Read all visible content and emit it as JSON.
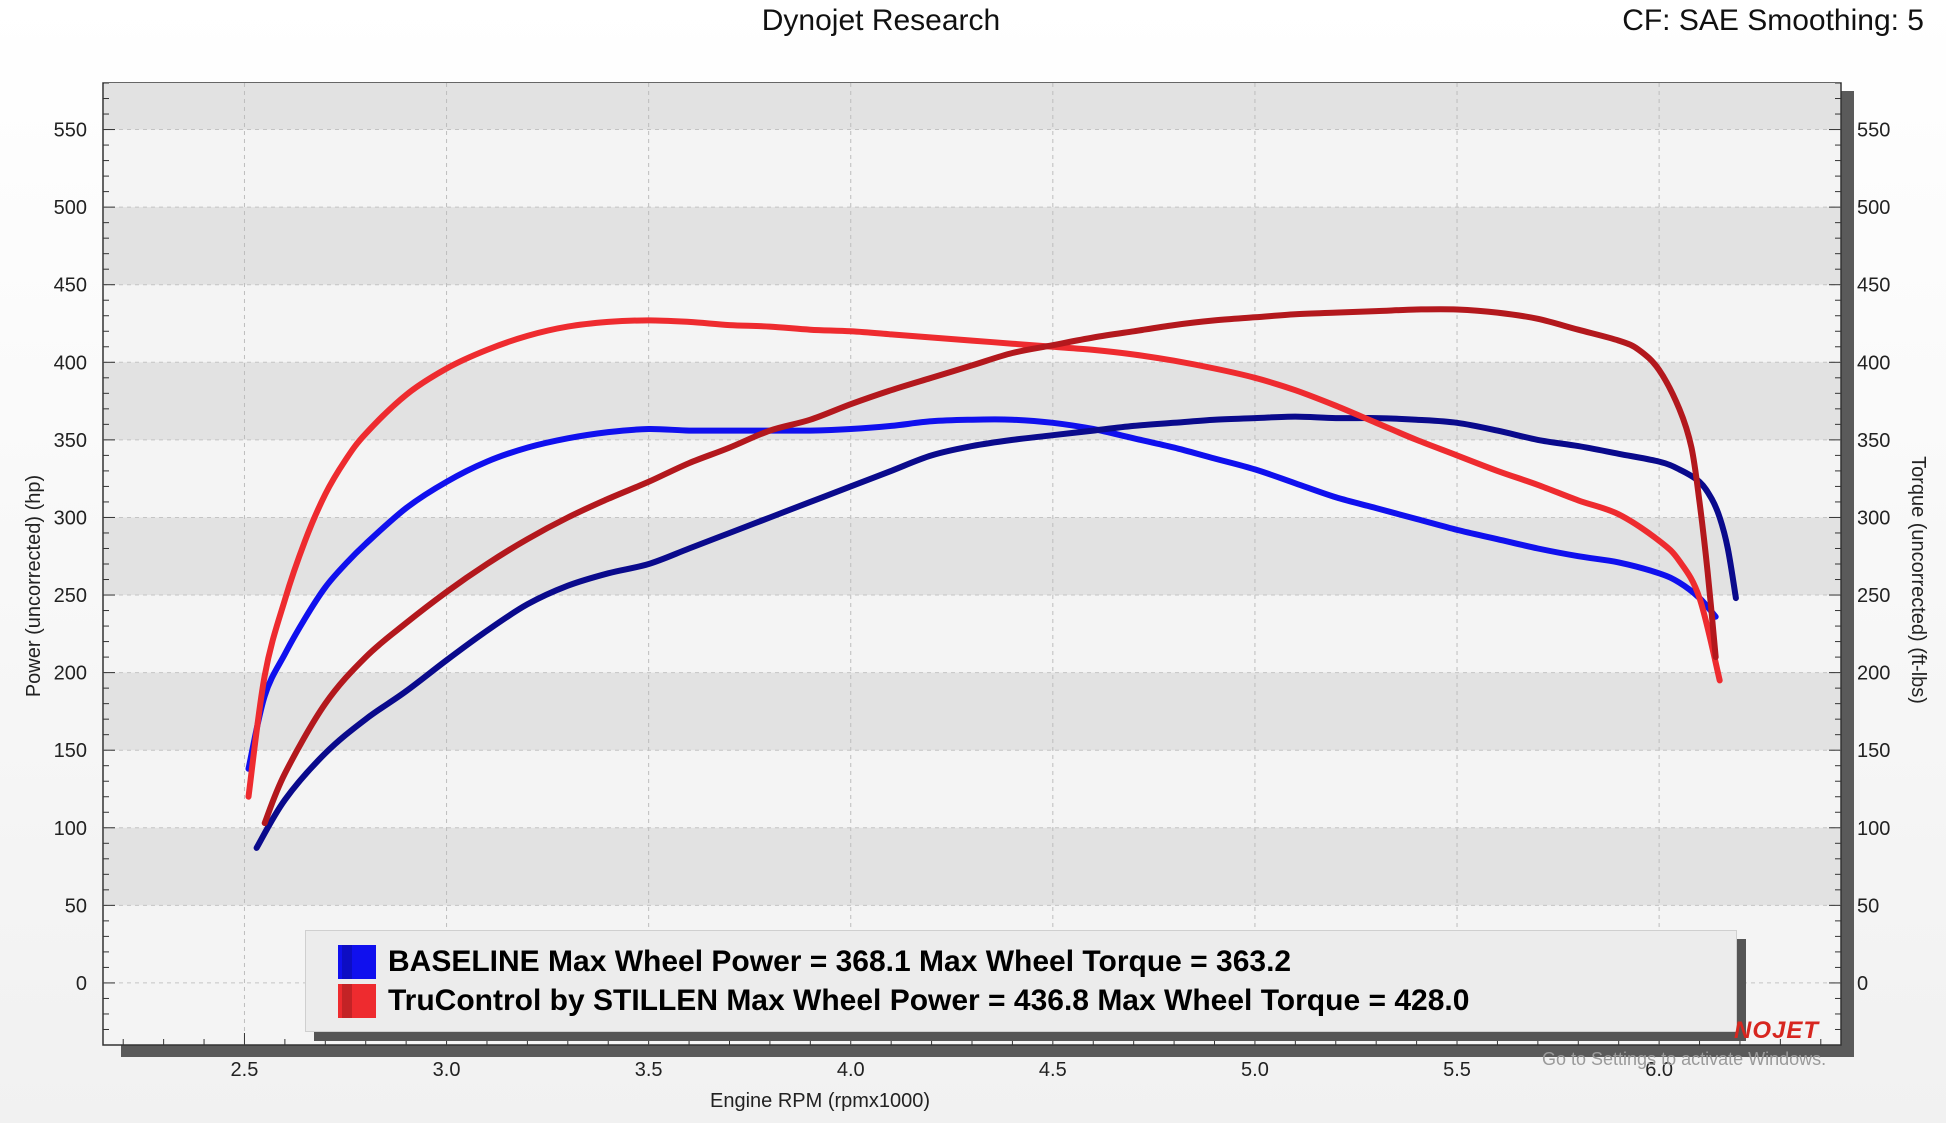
{
  "header": {
    "title": "Dynojet Research",
    "cf": "CF: SAE Smoothing: 5"
  },
  "legend": {
    "items": [
      {
        "label": "BASELINE Max Wheel Power = 368.1 Max Wheel Torque = 363.2",
        "color": "#1010ee"
      },
      {
        "label": "TruControl by STILLEN Max Wheel Power = 436.8 Max Wheel Torque = 428.0",
        "color": "#ee2b2f"
      }
    ]
  },
  "logo_text": "NOJET",
  "watermark": "Go to Settings to activate Windows.",
  "chart_data": {
    "type": "line",
    "xlabel": "Engine RPM (rpmx1000)",
    "ylabel": "Power (uncorrected) (hp)",
    "y2label": "Torque (uncorrected) (ft-lbs)",
    "xlim": [
      2.15,
      6.45
    ],
    "ylim": [
      -40,
      580
    ],
    "xticks": [
      "2.5",
      "3.0",
      "3.5",
      "4.0",
      "4.5",
      "5.0",
      "5.5",
      "6.0"
    ],
    "yticks": [
      "0",
      "50",
      "100",
      "150",
      "200",
      "250",
      "300",
      "350",
      "400",
      "450",
      "500",
      "550"
    ],
    "y2ticks": [
      "0",
      "50",
      "100",
      "150",
      "200",
      "250",
      "300",
      "350",
      "400",
      "450",
      "500",
      "550"
    ],
    "grid": true,
    "legend_position": "bottom",
    "series": [
      {
        "name": "BASELINE Power",
        "color": "#1010ee",
        "x": [
          2.51,
          2.55,
          2.6,
          2.65,
          2.7,
          2.75,
          2.8,
          2.9,
          3.0,
          3.1,
          3.2,
          3.3,
          3.4,
          3.5,
          3.6,
          3.7,
          3.8,
          3.9,
          4.0,
          4.1,
          4.2,
          4.3,
          4.4,
          4.5,
          4.6,
          4.7,
          4.8,
          4.9,
          5.0,
          5.1,
          5.2,
          5.3,
          5.4,
          5.5,
          5.6,
          5.7,
          5.8,
          5.9,
          6.0,
          6.05,
          6.1,
          6.14
        ],
        "y": [
          138,
          185,
          212,
          235,
          255,
          270,
          283,
          306,
          323,
          336,
          345,
          351,
          355,
          357,
          356,
          356,
          356,
          356,
          357,
          359,
          362,
          363,
          363,
          361,
          357,
          351,
          345,
          338,
          331,
          322,
          313,
          306,
          299,
          292,
          286,
          280,
          275,
          271,
          264,
          258,
          248,
          236
        ]
      },
      {
        "name": "BASELINE Torque",
        "color": "#0a0a8c",
        "x": [
          2.53,
          2.6,
          2.7,
          2.8,
          2.9,
          3.0,
          3.1,
          3.2,
          3.3,
          3.4,
          3.5,
          3.6,
          3.7,
          3.8,
          3.9,
          4.0,
          4.1,
          4.2,
          4.3,
          4.4,
          4.5,
          4.6,
          4.7,
          4.8,
          4.9,
          5.0,
          5.1,
          5.2,
          5.3,
          5.4,
          5.5,
          5.6,
          5.7,
          5.8,
          5.9,
          6.0,
          6.05,
          6.1,
          6.13,
          6.15,
          6.17,
          6.19
        ],
        "y": [
          87,
          118,
          148,
          170,
          188,
          208,
          227,
          244,
          256,
          264,
          270,
          280,
          290,
          300,
          310,
          320,
          330,
          340,
          346,
          350,
          353,
          356,
          359,
          361,
          363,
          364,
          365,
          364,
          364,
          363,
          361,
          356,
          350,
          346,
          341,
          336,
          331,
          323,
          312,
          300,
          280,
          248
        ]
      },
      {
        "name": "TruControl by STILLEN Power",
        "color": "#ee2b2f",
        "x": [
          2.51,
          2.55,
          2.6,
          2.65,
          2.7,
          2.75,
          2.8,
          2.9,
          3.0,
          3.1,
          3.2,
          3.3,
          3.4,
          3.5,
          3.6,
          3.7,
          3.8,
          3.9,
          4.0,
          4.1,
          4.2,
          4.3,
          4.4,
          4.5,
          4.6,
          4.7,
          4.8,
          4.9,
          5.0,
          5.1,
          5.2,
          5.3,
          5.4,
          5.5,
          5.6,
          5.7,
          5.8,
          5.9,
          6.0,
          6.05,
          6.1,
          6.15
        ],
        "y": [
          120,
          198,
          247,
          285,
          315,
          337,
          354,
          379,
          396,
          408,
          417,
          423,
          426,
          427,
          426,
          424,
          423,
          421,
          420,
          418,
          416,
          414,
          412,
          410,
          408,
          405,
          401,
          396,
          390,
          382,
          372,
          361,
          350,
          340,
          330,
          321,
          311,
          302,
          285,
          272,
          248,
          195
        ]
      },
      {
        "name": "TruControl by STILLEN Torque",
        "color": "#b3181d",
        "x": [
          2.55,
          2.6,
          2.7,
          2.8,
          2.9,
          3.0,
          3.1,
          3.2,
          3.3,
          3.4,
          3.5,
          3.6,
          3.7,
          3.8,
          3.9,
          4.0,
          4.1,
          4.2,
          4.3,
          4.4,
          4.5,
          4.6,
          4.7,
          4.8,
          4.9,
          5.0,
          5.1,
          5.2,
          5.3,
          5.4,
          5.5,
          5.6,
          5.7,
          5.8,
          5.9,
          5.95,
          6.0,
          6.05,
          6.08,
          6.1,
          6.12,
          6.14
        ],
        "y": [
          103,
          135,
          180,
          210,
          232,
          252,
          270,
          286,
          300,
          312,
          323,
          335,
          345,
          356,
          363,
          373,
          382,
          390,
          398,
          406,
          411,
          416,
          420,
          424,
          427,
          429,
          431,
          432,
          433,
          434,
          434,
          432,
          428,
          421,
          414,
          408,
          395,
          370,
          345,
          310,
          265,
          210
        ]
      }
    ]
  }
}
